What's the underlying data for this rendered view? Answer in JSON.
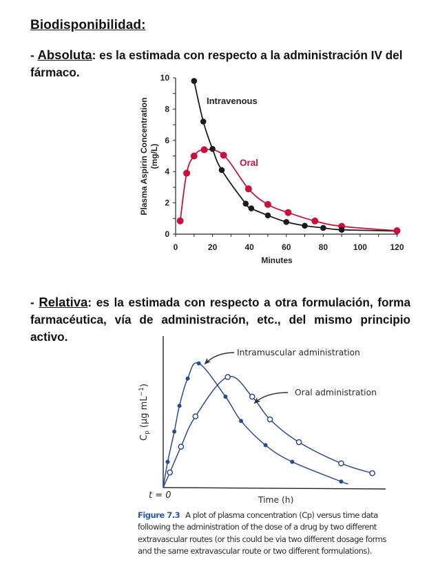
{
  "heading": "Biodisponibilidad:",
  "absolute": {
    "prefix": "- ",
    "term": "Absoluta",
    "colon": ":",
    "text": " es la estimada con respecto a la administración IV del fármaco."
  },
  "relative": {
    "prefix": "- ",
    "term": "Relativa",
    "colon": ":",
    "text": " es la estimada con respecto a otra formulación, forma farmacéutica, vía de administración, etc., del mismo principio activo."
  },
  "caption": {
    "figure_label": "Figure 7.3",
    "text": "A plot of plasma concentration (Cp) versus time data following the administration of the dose of a drug by two different extravascular routes (or this could be via two different dosage forms and the same extravascular route or two different formulations)."
  },
  "chart_data": [
    {
      "type": "line",
      "title": "",
      "xlabel": "Minutes",
      "ylabel": "Plasma Aspirin Concentration (mg/L)",
      "ylabel_lines": [
        "Plasma Aspirin Concentration",
        "(mg/L)"
      ],
      "xlim": [
        0,
        120
      ],
      "ylim": [
        0,
        10
      ],
      "xticks": [
        0,
        20,
        40,
        60,
        80,
        100,
        120
      ],
      "xtick_labels": [
        "0",
        "20",
        "40",
        "60",
        "80",
        "100",
        "120"
      ],
      "yticks": [
        0,
        2,
        4,
        6,
        8,
        10
      ],
      "ytick_labels": [
        "0",
        "2",
        "4",
        "6",
        "8",
        "10"
      ],
      "grid": false,
      "series": [
        {
          "name": "Intravenous",
          "color": "#1a1a1a",
          "x": [
            10,
            15,
            20,
            25,
            38,
            41,
            50,
            60,
            70,
            80,
            90,
            120
          ],
          "y": [
            9.8,
            7.2,
            5.45,
            4.1,
            1.95,
            1.65,
            1.2,
            0.78,
            0.54,
            0.4,
            0.28,
            0.2
          ]
        },
        {
          "name": "Oral",
          "color": "#c8103c",
          "x": [
            2.5,
            6,
            10,
            15.5,
            26,
            39.5,
            50,
            61,
            75.5,
            90,
            120
          ],
          "y": [
            0.85,
            3.9,
            5.0,
            5.4,
            5.05,
            2.9,
            1.9,
            1.38,
            0.84,
            0.5,
            0.22
          ]
        }
      ]
    },
    {
      "type": "line",
      "title": "",
      "xlabel": "Time (h)",
      "ylabel": "Cp (μg mL⁻¹)",
      "ylabel_main": "C",
      "ylabel_sub": "p",
      "ylabel_rest": " (μg mL",
      "ylabel_sup": "−1",
      "ylabel_end": ")",
      "origin_label": "t = 0",
      "note": "No numeric axis scale shown; values in relative plot units (x: 0–100, y: 0–100)",
      "xlim": [
        0,
        100
      ],
      "ylim": [
        0,
        100
      ],
      "grid": false,
      "series": [
        {
          "name": "Intramuscular administration",
          "marker": "filled",
          "color": "#2c4a8c",
          "x": [
            2,
            5,
            7.3,
            11,
            16,
            28,
            35,
            46,
            58,
            80
          ],
          "y": [
            17,
            37,
            54,
            72,
            82,
            60,
            44,
            28,
            17,
            4
          ]
        },
        {
          "name": "Oral administration",
          "marker": "open",
          "color": "#2c4a8c",
          "x": [
            3,
            8,
            14.5,
            29,
            40,
            48,
            61,
            80,
            94
          ],
          "y": [
            10,
            27,
            47,
            73,
            60,
            45,
            30,
            16,
            9.5
          ]
        }
      ],
      "annotations": [
        {
          "text": "Intramuscular administration",
          "points_to": "peak of intramuscular curve"
        },
        {
          "text": "Oral administration",
          "points_to": "descending oral curve"
        }
      ]
    }
  ]
}
